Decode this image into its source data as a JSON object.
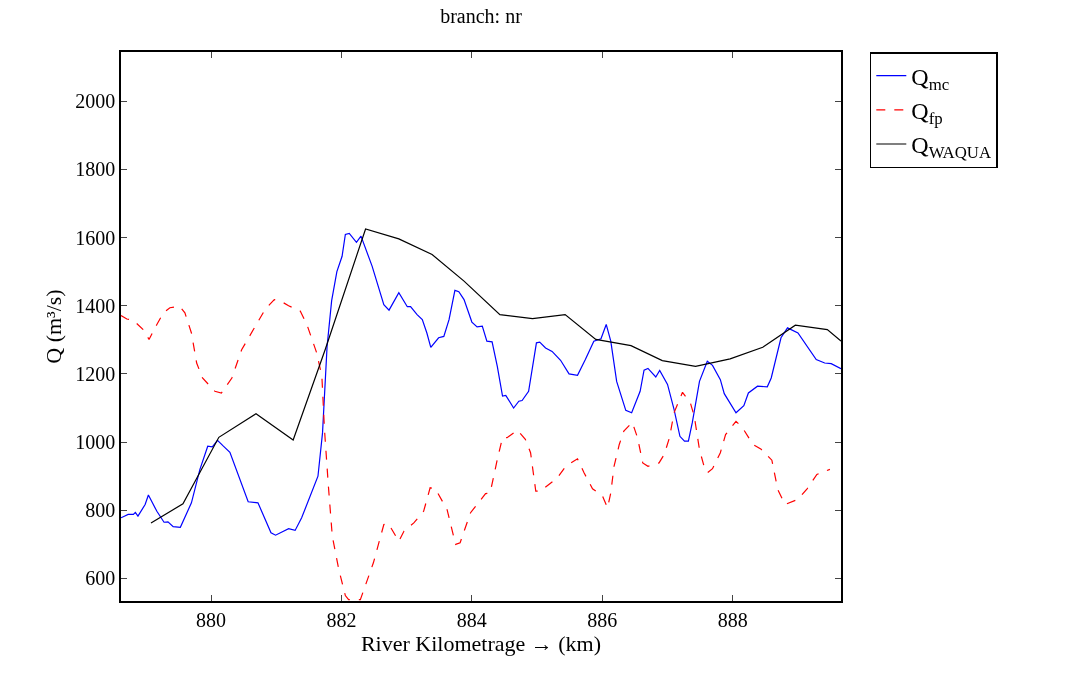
{
  "chart_data": {
    "type": "line",
    "title": "branch: nr",
    "xlabel": "River Kilometrage → (km)",
    "ylabel": "Q (m³/s)",
    "xlim": [
      878.62,
      889.66
    ],
    "xticks": [
      880,
      882,
      884,
      886,
      888
    ],
    "ylim": [
      534,
      2144
    ],
    "yticks": [
      600,
      800,
      1000,
      1200,
      1400,
      1600,
      1800,
      2000
    ],
    "legend": "top right",
    "marker": "none",
    "series": [
      {
        "name": "Q$_{mc}$",
        "color": "#0000ff",
        "line_style": "solid",
        "x": [
          878.62,
          878.73,
          878.81,
          878.84,
          878.88,
          878.99,
          879.04,
          879.17,
          879.28,
          879.34,
          879.42,
          879.53,
          879.7,
          879.83,
          879.95,
          880.02,
          880.1,
          880.19,
          880.29,
          880.57,
          880.72,
          880.92,
          880.99,
          881.19,
          881.29,
          881.39,
          881.64,
          881.71,
          881.78,
          881.85,
          881.93,
          882.01,
          882.06,
          882.12,
          882.23,
          882.3,
          882.47,
          882.65,
          882.73,
          882.88,
          883.01,
          883.06,
          883.16,
          883.24,
          883.31,
          883.37,
          883.49,
          883.57,
          883.65,
          883.74,
          883.8,
          883.88,
          884.0,
          884.08,
          884.16,
          884.23,
          884.31,
          884.39,
          884.47,
          884.52,
          884.64,
          884.72,
          884.77,
          884.87,
          884.99,
          885.04,
          885.13,
          885.23,
          885.36,
          885.49,
          885.62,
          885.74,
          885.87,
          885.98,
          886.06,
          886.13,
          886.22,
          886.36,
          886.45,
          886.58,
          886.64,
          886.7,
          886.82,
          886.88,
          887.0,
          887.1,
          887.19,
          887.26,
          887.32,
          887.38,
          887.49,
          887.61,
          887.69,
          887.81,
          887.87,
          888.05,
          888.17,
          888.24,
          888.38,
          888.53,
          888.59,
          888.74,
          888.84,
          889.0,
          889.28,
          889.41,
          889.51,
          889.66
        ],
        "values": [
          778,
          788,
          788,
          794,
          783,
          817,
          845,
          797,
          765,
          766,
          752,
          750,
          822,
          920,
          988,
          986,
          1005,
          988,
          970,
          825,
          822,
          734,
          727,
          746,
          741,
          778,
          900,
          1027,
          1281,
          1415,
          1500,
          1545,
          1609,
          1612,
          1586,
          1604,
          1516,
          1403,
          1387,
          1438,
          1397,
          1397,
          1374,
          1359,
          1320,
          1278,
          1306,
          1310,
          1359,
          1445,
          1441,
          1418,
          1352,
          1338,
          1340,
          1296,
          1294,
          1222,
          1135,
          1137,
          1100,
          1120,
          1122,
          1149,
          1291,
          1293,
          1276,
          1266,
          1240,
          1200,
          1196,
          1242,
          1296,
          1303,
          1345,
          1296,
          1178,
          1093,
          1086,
          1149,
          1211,
          1216,
          1191,
          1210,
          1169,
          1096,
          1017,
          1003,
          1003,
          1057,
          1178,
          1237,
          1225,
          1183,
          1142,
          1086,
          1107,
          1144,
          1164,
          1162,
          1188,
          1306,
          1335,
          1320,
          1242,
          1232,
          1230,
          1215
        ]
      },
      {
        "name": "Q$_{fp}$",
        "color": "#ff0000",
        "line_style": "dashed",
        "x": [
          878.62,
          878.71,
          878.81,
          878.96,
          879.05,
          879.17,
          879.27,
          879.37,
          879.52,
          879.6,
          879.7,
          879.78,
          879.87,
          880.06,
          880.16,
          880.32,
          880.47,
          880.65,
          880.83,
          880.97,
          881.09,
          881.19,
          881.37,
          881.47,
          881.62,
          881.7,
          881.74,
          881.8,
          881.86,
          881.96,
          882.06,
          882.11,
          882.29,
          882.49,
          882.65,
          882.72,
          882.88,
          882.96,
          883.11,
          883.26,
          883.36,
          883.44,
          883.62,
          883.75,
          883.82,
          883.98,
          884.21,
          884.28,
          884.39,
          884.47,
          884.54,
          884.7,
          884.82,
          884.9,
          884.98,
          885.05,
          885.31,
          885.44,
          885.62,
          885.72,
          885.85,
          886.0,
          886.08,
          886.13,
          886.18,
          886.26,
          886.33,
          886.46,
          886.54,
          886.62,
          886.7,
          886.87,
          886.95,
          887.03,
          887.1,
          887.23,
          887.35,
          887.41,
          887.49,
          887.56,
          887.61,
          887.69,
          887.81,
          887.89,
          888.05,
          888.15,
          888.31,
          888.43,
          888.6,
          888.69,
          888.8,
          889.0,
          889.14,
          889.29,
          889.49
        ],
        "values": [
          1371,
          1361,
          1357,
          1330,
          1301,
          1345,
          1379,
          1394,
          1398,
          1379,
          1320,
          1232,
          1188,
          1149,
          1144,
          1188,
          1271,
          1330,
          1389,
          1418,
          1411,
          1400,
          1384,
          1345,
          1262,
          1193,
          1037,
          871,
          724,
          626,
          550,
          538,
          538,
          646,
          758,
          761,
          709,
          739,
          763,
          797,
          866,
          863,
          802,
          700,
          705,
          793,
          849,
          851,
          949,
          1013,
          1013,
          1035,
          1008,
          969,
          856,
          856,
          895,
          929,
          951,
          910,
          863,
          843,
          807,
          851,
          929,
          993,
          1032,
          1058,
          1013,
          939,
          929,
          939,
          964,
          1013,
          1086,
          1146,
          1115,
          1076,
          978,
          929,
          910,
          922,
          969,
          1022,
          1061,
          1042,
          993,
          980,
          947,
          861,
          817,
          832,
          863,
          905,
          920
        ]
      },
      {
        "name": "Q$_{WAQUA}$",
        "color": "#000000",
        "line_style": "solid",
        "x": [
          879.08,
          879.57,
          880.12,
          880.69,
          881.26,
          881.75,
          882.37,
          882.88,
          883.39,
          883.88,
          884.43,
          884.93,
          885.43,
          885.9,
          886.44,
          886.92,
          887.43,
          887.96,
          888.46,
          888.96,
          889.45,
          889.66
        ],
        "values": [
          763,
          819,
          1014,
          1083,
          1006,
          1271,
          1625,
          1596,
          1550,
          1472,
          1374,
          1362,
          1374,
          1301,
          1283,
          1239,
          1222,
          1244,
          1278,
          1343,
          1330,
          1296
        ]
      }
    ]
  }
}
